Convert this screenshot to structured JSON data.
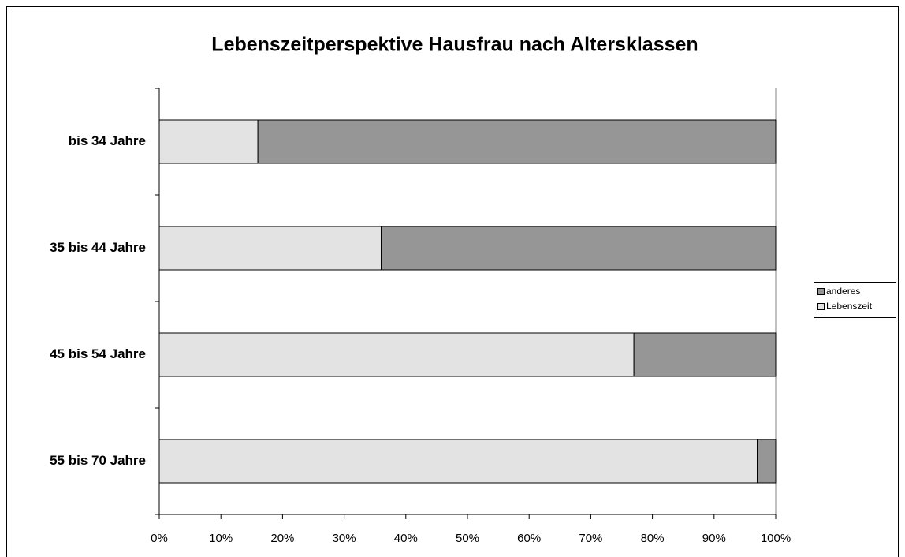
{
  "chart_data": {
    "type": "stacked-bar-horizontal",
    "title": "Lebenszeitperspektive Hausfrau nach Altersklassen",
    "categories": [
      "bis 34 Jahre",
      "35 bis 44 Jahre",
      "45 bis 54 Jahre",
      "55 bis 70 Jahre"
    ],
    "series": [
      {
        "name": "Lebenszeit",
        "color": "#e3e3e3",
        "values": [
          16,
          36,
          77,
          97
        ]
      },
      {
        "name": "anderes",
        "color": "#969696",
        "values": [
          84,
          64,
          23,
          3
        ]
      }
    ],
    "xlim": [
      0,
      100
    ],
    "xticks": [
      {
        "value": 0,
        "label": "0%"
      },
      {
        "value": 10,
        "label": "10%"
      },
      {
        "value": 20,
        "label": "20%"
      },
      {
        "value": 30,
        "label": "30%"
      },
      {
        "value": 40,
        "label": "40%"
      },
      {
        "value": 50,
        "label": "50%"
      },
      {
        "value": 60,
        "label": "60%"
      },
      {
        "value": 70,
        "label": "70%"
      },
      {
        "value": 80,
        "label": "80%"
      },
      {
        "value": 90,
        "label": "90%"
      },
      {
        "value": 100,
        "label": "100%"
      }
    ],
    "legend": "right"
  }
}
